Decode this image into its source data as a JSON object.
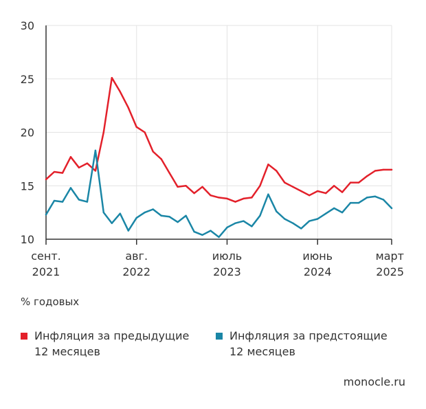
{
  "unit_label": "% годовых",
  "source": "monocle.ru",
  "colors": {
    "series1": "#e3202a",
    "series2": "#1a86a6",
    "grid": "#e3e3e3",
    "axis": "#333333"
  },
  "chart_data": {
    "type": "line",
    "title": "",
    "xlabel": "",
    "ylabel": "",
    "ylim": [
      10,
      30
    ],
    "yticks": [
      10,
      15,
      20,
      25,
      30
    ],
    "grid": true,
    "legend_position": "bottom",
    "x_range": [
      "2021-09",
      "2025-03"
    ],
    "xticks": [
      {
        "date": "2021-09",
        "label1": "сент.",
        "label2": "2021"
      },
      {
        "date": "2022-08",
        "label1": "авг.",
        "label2": "2022"
      },
      {
        "date": "2023-07",
        "label1": "июль",
        "label2": "2023"
      },
      {
        "date": "2024-06",
        "label1": "июнь",
        "label2": "2024"
      },
      {
        "date": "2025-03",
        "label1": "март",
        "label2": "2025"
      }
    ],
    "x": [
      "2021-09",
      "2021-10",
      "2021-11",
      "2021-12",
      "2022-01",
      "2022-02",
      "2022-03",
      "2022-04",
      "2022-05",
      "2022-06",
      "2022-07",
      "2022-08",
      "2022-09",
      "2022-10",
      "2022-11",
      "2022-12",
      "2023-01",
      "2023-02",
      "2023-03",
      "2023-04",
      "2023-05",
      "2023-06",
      "2023-07",
      "2023-08",
      "2023-09",
      "2023-10",
      "2023-11",
      "2023-12",
      "2024-01",
      "2024-02",
      "2024-03",
      "2024-04",
      "2024-05",
      "2024-06",
      "2024-07",
      "2024-08",
      "2024-09",
      "2024-10",
      "2024-11",
      "2024-12",
      "2025-01",
      "2025-02",
      "2025-03"
    ],
    "series": [
      {
        "name": "Инфляция за предыдущие\n12 месяцев",
        "color": "#e3202a",
        "values": [
          15.6,
          16.3,
          16.2,
          17.7,
          16.7,
          17.1,
          16.4,
          20.0,
          25.1,
          23.8,
          22.3,
          20.5,
          20.0,
          18.2,
          17.5,
          16.2,
          14.9,
          15.0,
          14.3,
          14.9,
          14.1,
          13.9,
          13.8,
          13.5,
          13.8,
          13.9,
          15.0,
          17.0,
          16.4,
          15.3,
          14.9,
          14.5,
          14.1,
          14.5,
          14.3,
          15.0,
          14.4,
          15.3,
          15.3,
          15.9,
          16.4,
          16.5,
          16.5
        ]
      },
      {
        "name": "Инфляция за предстоящие\n12 месяцев",
        "color": "#1a86a6",
        "values": [
          12.3,
          13.6,
          13.5,
          14.8,
          13.7,
          13.5,
          18.3,
          12.5,
          11.5,
          12.4,
          10.8,
          12.0,
          12.5,
          12.8,
          12.2,
          12.1,
          11.6,
          12.2,
          10.7,
          10.4,
          10.8,
          10.2,
          11.1,
          11.5,
          11.7,
          11.2,
          12.2,
          14.2,
          12.6,
          11.9,
          11.5,
          11.0,
          11.7,
          11.9,
          12.4,
          12.9,
          12.5,
          13.4,
          13.4,
          13.9,
          14.0,
          13.7,
          12.9
        ]
      }
    ]
  }
}
